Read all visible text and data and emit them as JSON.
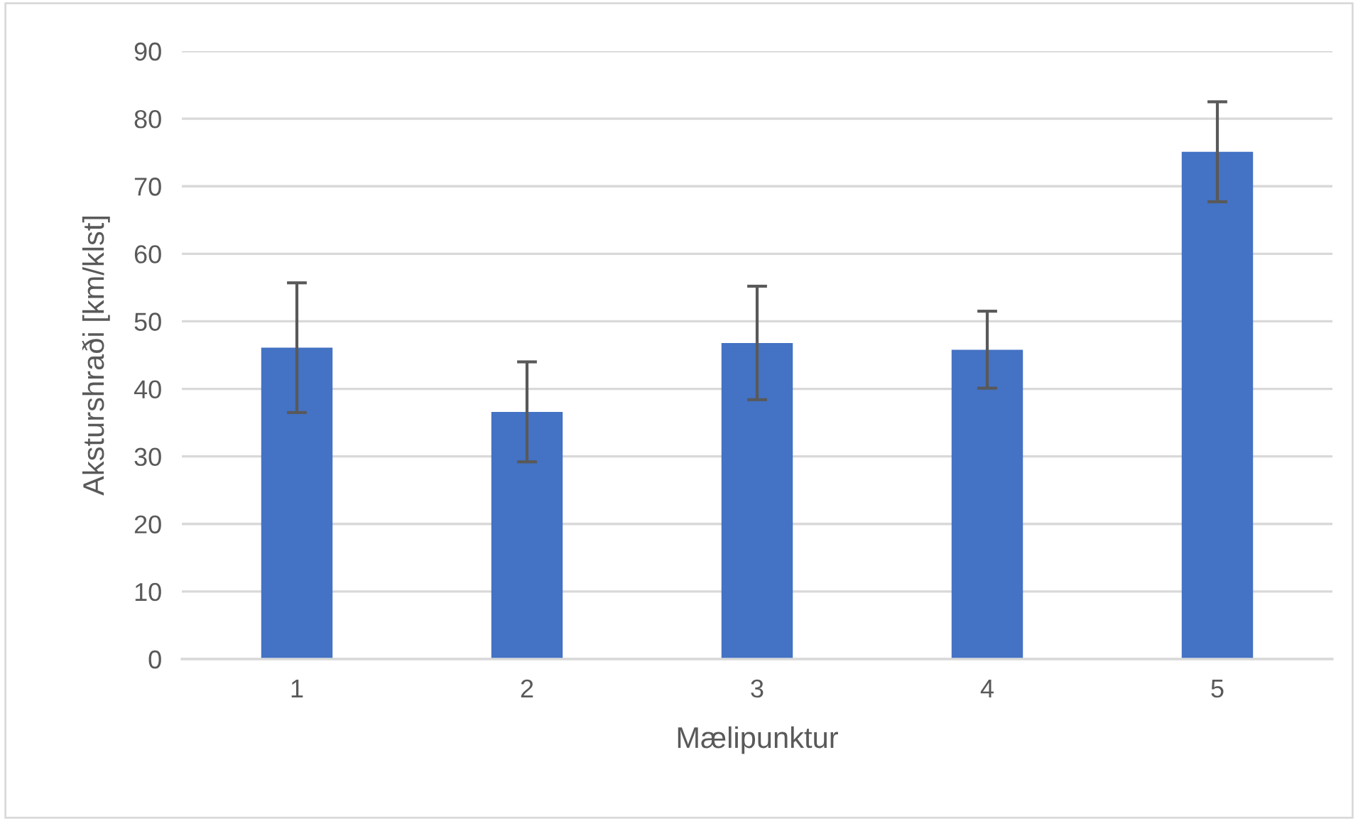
{
  "chart_data": {
    "type": "bar",
    "xlabel": "Mælipunktur",
    "ylabel": "Aksturshraði [km/klst]",
    "categories": [
      "1",
      "2",
      "3",
      "4",
      "5"
    ],
    "values": [
      46.1,
      36.6,
      46.8,
      45.8,
      75.1
    ],
    "errors": [
      9.6,
      7.4,
      8.4,
      5.7,
      7.4
    ],
    "color": "#4472c4",
    "ylim": [
      0,
      90
    ],
    "yticks": [
      0,
      10,
      20,
      30,
      40,
      50,
      60,
      70,
      80,
      90
    ],
    "grid": "y"
  }
}
